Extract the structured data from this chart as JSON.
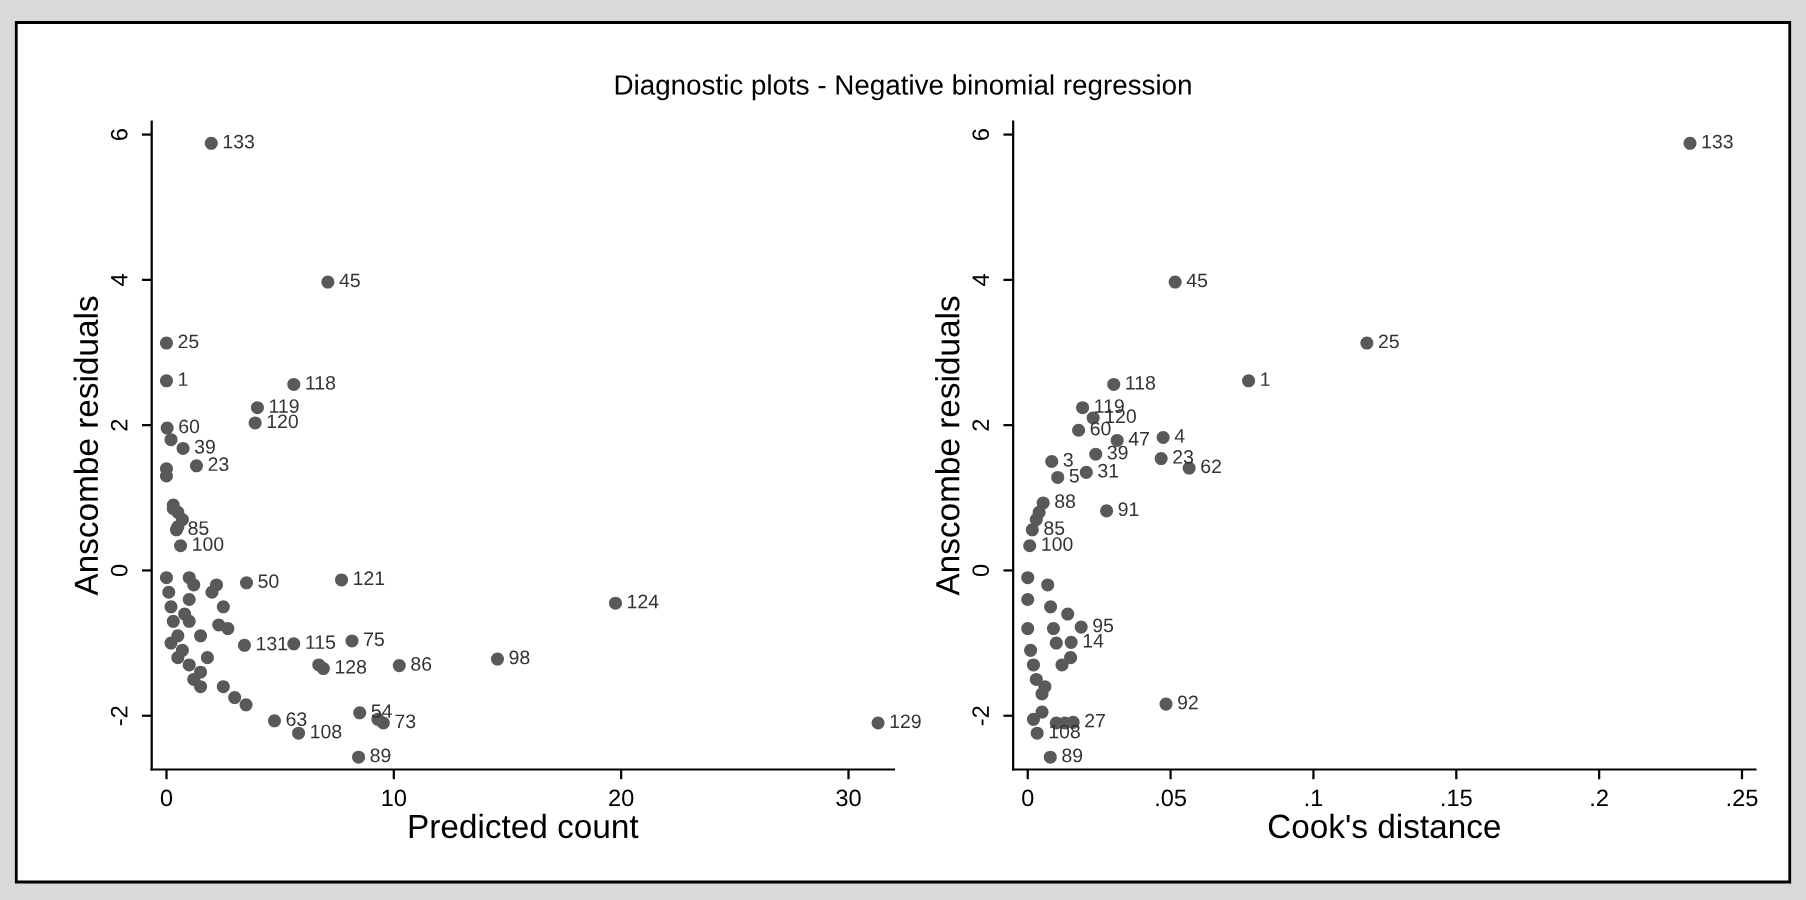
{
  "chart_data": [
    {
      "type": "scatter",
      "title": "Diagnostic plots - Negative binomial regression",
      "xlabel": "Predicted count",
      "ylabel": "Anscombe residuals",
      "marker": "circle",
      "grid": false,
      "xlim": [
        -0.65,
        32
      ],
      "ylim": [
        -2.74,
        6.18
      ],
      "xticks": [
        0,
        10,
        20,
        30
      ],
      "yticks": [
        {
          "value": -2,
          "label": "-2"
        },
        0,
        2,
        4,
        6
      ],
      "series": [
        {
          "color": "#595959",
          "x": [
            1.97,
            7.1,
            0.0,
            0.0,
            5.6,
            4.0,
            3.9,
            0.03,
            7.7,
            19.75,
            8.16,
            14.56,
            10.24,
            5.6,
            3.43,
            3.52,
            6.9,
            4.75,
            5.81,
            8.45,
            8.5,
            9.54,
            31.3,
            0.62,
            0.44,
            0.73,
            1.32,
            0.0,
            0.0,
            0.2,
            0.3,
            0.5,
            0.7,
            0.1,
            0.2,
            0.3,
            0.5,
            0.7,
            1.0,
            1.5,
            2.5,
            3.0,
            3.5,
            1.0,
            1.0,
            1.0,
            1.5,
            1.8,
            2.2,
            2.5,
            2.7,
            1.2,
            0.8,
            0.3,
            0.5,
            0.0,
            0.2,
            0.5,
            1.2,
            1.5,
            2.0,
            2.3,
            6.7,
            9.3
          ],
          "values": [
            5.88,
            3.97,
            3.13,
            2.61,
            2.56,
            2.24,
            2.03,
            1.96,
            -0.13,
            -0.45,
            -0.97,
            -1.22,
            -1.31,
            -1.01,
            -1.03,
            -0.17,
            -1.35,
            -2.07,
            -2.24,
            -2.57,
            -1.96,
            -2.1,
            -2.1,
            0.34,
            0.56,
            1.68,
            1.44,
            1.4,
            1.3,
            1.8,
            0.9,
            0.8,
            0.7,
            -0.3,
            -0.5,
            -0.7,
            -0.9,
            -1.1,
            -1.3,
            -1.4,
            -1.6,
            -1.75,
            -1.85,
            -0.1,
            -0.4,
            -0.7,
            -0.9,
            -1.2,
            -0.2,
            -0.5,
            -0.8,
            -0.2,
            -0.6,
            0.85,
            0.6,
            -0.1,
            -1.0,
            -1.2,
            -1.5,
            -1.6,
            -0.3,
            -0.75,
            -1.3,
            -2.05
          ]
        }
      ],
      "annotations": [
        {
          "text": "133",
          "x": 1.97,
          "y": 5.88
        },
        {
          "text": "45",
          "x": 7.1,
          "y": 3.97
        },
        {
          "text": "25",
          "x": 0.0,
          "y": 3.13
        },
        {
          "text": "1",
          "x": 0.0,
          "y": 2.61
        },
        {
          "text": "118",
          "x": 5.6,
          "y": 2.56
        },
        {
          "text": "119",
          "x": 4.0,
          "y": 2.24
        },
        {
          "text": "120",
          "x": 3.9,
          "y": 2.03
        },
        {
          "text": "60",
          "x": 0.03,
          "y": 1.96
        },
        {
          "text": "121",
          "x": 7.7,
          "y": -0.13
        },
        {
          "text": "124",
          "x": 19.75,
          "y": -0.45
        },
        {
          "text": "75",
          "x": 8.16,
          "y": -0.97
        },
        {
          "text": "98",
          "x": 14.56,
          "y": -1.22
        },
        {
          "text": "86",
          "x": 10.24,
          "y": -1.31
        },
        {
          "text": "115",
          "x": 5.6,
          "y": -1.01
        },
        {
          "text": "131",
          "x": 3.43,
          "y": -1.03
        },
        {
          "text": "50",
          "x": 3.52,
          "y": -0.17
        },
        {
          "text": "128",
          "x": 6.9,
          "y": -1.35
        },
        {
          "text": "63",
          "x": 4.75,
          "y": -2.07
        },
        {
          "text": "108",
          "x": 5.81,
          "y": -2.24
        },
        {
          "text": "89",
          "x": 8.45,
          "y": -2.57
        },
        {
          "text": "54",
          "x": 8.5,
          "y": -1.96
        },
        {
          "text": "73",
          "x": 9.54,
          "y": -2.1
        },
        {
          "text": "129",
          "x": 31.3,
          "y": -2.1
        },
        {
          "text": "100",
          "x": 0.62,
          "y": 0.34
        },
        {
          "text": "85",
          "x": 0.44,
          "y": 0.56
        },
        {
          "text": "39",
          "x": 0.73,
          "y": 1.68
        },
        {
          "text": "23",
          "x": 1.32,
          "y": 1.44
        }
      ]
    },
    {
      "type": "scatter",
      "xlabel": "Cook's distance",
      "ylabel": "Anscombe residuals",
      "marker": "circle",
      "grid": false,
      "xlim": [
        -0.0051,
        0.2547
      ],
      "ylim": [
        -2.74,
        6.18
      ],
      "xticks": [
        0,
        {
          "value": 0.05,
          "label": ".05"
        },
        {
          "value": 0.1,
          "label": ".1"
        },
        {
          "value": 0.15,
          "label": ".15"
        },
        {
          "value": 0.2,
          "label": ".2"
        },
        {
          "value": 0.25,
          "label": ".25"
        }
      ],
      "yticks": [
        {
          "value": -2,
          "label": "-2"
        },
        0,
        2,
        4,
        6
      ],
      "series": [
        {
          "color": "#595959",
          "x": [
            0.2318,
            0.0516,
            0.1187,
            0.0773,
            0.0301,
            0.0192,
            0.0229,
            0.0178,
            0.0313,
            0.0474,
            0.0238,
            0.0467,
            0.0565,
            0.0084,
            0.0205,
            0.0105,
            0.0276,
            0.0054,
            0.0016,
            0.0007,
            0.0484,
            0.0079,
            0.0159,
            0.0033,
            0.0187,
            0.0152,
            0.0,
            0.0,
            0.0,
            0.001,
            0.002,
            0.003,
            0.005,
            0.007,
            0.008,
            0.009,
            0.01,
            0.012,
            0.014,
            0.015,
            0.005,
            0.002,
            0.01,
            0.013,
            0.006,
            0.004,
            0.003
          ],
          "values": [
            5.88,
            3.97,
            3.13,
            2.61,
            2.56,
            2.24,
            2.1,
            1.93,
            1.79,
            1.83,
            1.6,
            1.54,
            1.41,
            1.5,
            1.35,
            1.28,
            0.82,
            0.93,
            0.56,
            0.34,
            -1.84,
            -2.57,
            -2.09,
            -2.24,
            -0.78,
            -0.99,
            -0.1,
            -0.4,
            -0.8,
            -1.1,
            -1.3,
            -1.5,
            -1.7,
            -0.2,
            -0.5,
            -0.8,
            -1.0,
            -1.3,
            -0.6,
            -1.2,
            -1.95,
            -2.05,
            -2.1,
            -2.1,
            -1.6,
            0.8,
            0.7
          ]
        }
      ],
      "annotations": [
        {
          "text": "133",
          "x": 0.2318,
          "y": 5.88
        },
        {
          "text": "45",
          "x": 0.0516,
          "y": 3.97
        },
        {
          "text": "25",
          "x": 0.1187,
          "y": 3.13
        },
        {
          "text": "1",
          "x": 0.0773,
          "y": 2.61
        },
        {
          "text": "118",
          "x": 0.0301,
          "y": 2.56
        },
        {
          "text": "119",
          "x": 0.0192,
          "y": 2.24
        },
        {
          "text": "120",
          "x": 0.0229,
          "y": 2.1
        },
        {
          "text": "60",
          "x": 0.0178,
          "y": 1.93
        },
        {
          "text": "47",
          "x": 0.0313,
          "y": 1.79
        },
        {
          "text": "4",
          "x": 0.0474,
          "y": 1.83
        },
        {
          "text": "39",
          "x": 0.0238,
          "y": 1.6
        },
        {
          "text": "23",
          "x": 0.0467,
          "y": 1.54
        },
        {
          "text": "62",
          "x": 0.0565,
          "y": 1.41
        },
        {
          "text": "3",
          "x": 0.0084,
          "y": 1.5
        },
        {
          "text": "31",
          "x": 0.0205,
          "y": 1.35
        },
        {
          "text": "5",
          "x": 0.0105,
          "y": 1.28
        },
        {
          "text": "91",
          "x": 0.0276,
          "y": 0.82
        },
        {
          "text": "88",
          "x": 0.0054,
          "y": 0.93
        },
        {
          "text": "85",
          "x": 0.0016,
          "y": 0.56
        },
        {
          "text": "100",
          "x": 0.0007,
          "y": 0.34
        },
        {
          "text": "92",
          "x": 0.0484,
          "y": -1.84
        },
        {
          "text": "89",
          "x": 0.0079,
          "y": -2.57
        },
        {
          "text": "27",
          "x": 0.0159,
          "y": -2.09
        },
        {
          "text": "108",
          "x": 0.0033,
          "y": -2.24
        },
        {
          "text": "95",
          "x": 0.0187,
          "y": -0.78
        },
        {
          "text": "14",
          "x": 0.0152,
          "y": -0.99
        }
      ]
    }
  ]
}
